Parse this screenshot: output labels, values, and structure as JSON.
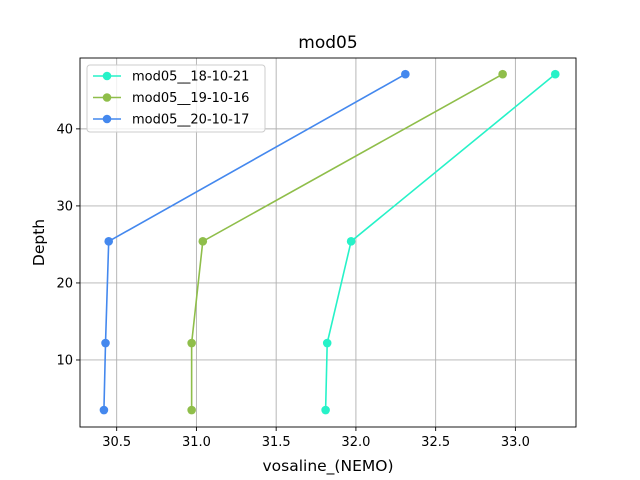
{
  "chart_data": {
    "type": "line",
    "title": "mod05",
    "xlabel": "vosaline_(NEMO)",
    "ylabel": "Depth",
    "xlim": [
      30.27,
      33.38
    ],
    "ylim": [
      1.3,
      49.2
    ],
    "x_ticks": [
      30.5,
      31.0,
      31.5,
      32.0,
      32.5,
      33.0
    ],
    "x_tick_labels": [
      "30.5",
      "31.0",
      "31.5",
      "32.0",
      "32.5",
      "33.0"
    ],
    "y_ticks": [
      10,
      20,
      30,
      40
    ],
    "y_tick_labels": [
      "10",
      "20",
      "30",
      "40"
    ],
    "grid": true,
    "legend_position": "top-left",
    "series": [
      {
        "name": "mod05__18-10-21",
        "color": "#26f2c8",
        "x": [
          31.81,
          31.82,
          31.97,
          33.25
        ],
        "y": [
          3.5,
          12.2,
          25.4,
          47.1
        ]
      },
      {
        "name": "mod05__19-10-16",
        "color": "#8fbe4a",
        "x": [
          30.97,
          30.97,
          31.04,
          32.92
        ],
        "y": [
          3.5,
          12.2,
          25.4,
          47.1
        ]
      },
      {
        "name": "mod05__20-10-17",
        "color": "#4488ee",
        "x": [
          30.42,
          30.43,
          30.45,
          32.31
        ],
        "y": [
          3.5,
          12.2,
          25.4,
          47.1
        ]
      }
    ]
  }
}
